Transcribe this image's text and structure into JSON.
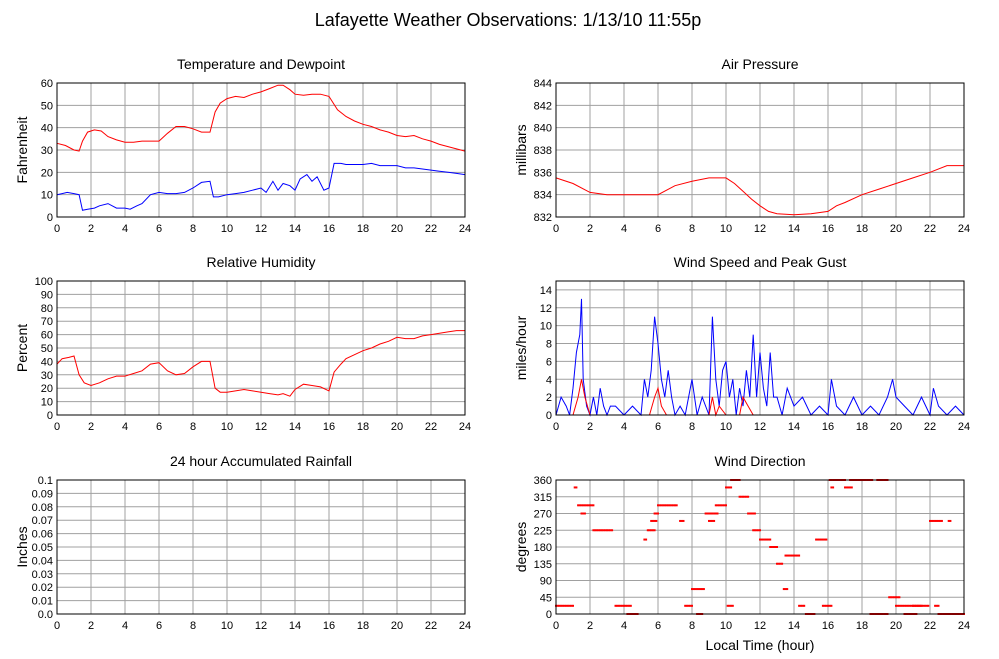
{
  "page": {
    "title": "Lafayette Weather Observations: 1/13/10 11:55p",
    "x_axis_label": "Local Time (hour)"
  },
  "colors": {
    "red": "#ff0000",
    "blue": "#0000ff",
    "grid": "#a0a0a0"
  },
  "chart_data": [
    {
      "id": "temp",
      "type": "line",
      "title": "Temperature and Dewpoint",
      "xlabel": "",
      "ylabel": "Fahrenheit",
      "xlim": [
        0,
        24
      ],
      "ylim": [
        0,
        60
      ],
      "xticks": [
        0,
        2,
        4,
        6,
        8,
        10,
        12,
        14,
        16,
        18,
        20,
        22,
        24
      ],
      "yticks": [
        0,
        10,
        20,
        30,
        40,
        50,
        60
      ],
      "grid": true,
      "series": [
        {
          "color": "red",
          "x": [
            0,
            0.5,
            1,
            1.3,
            1.5,
            1.8,
            2.2,
            2.6,
            3,
            3.5,
            4,
            4.5,
            5,
            5.5,
            6,
            6.5,
            7,
            7.5,
            8,
            8.5,
            9,
            9.3,
            9.6,
            10,
            10.5,
            11,
            11.5,
            12,
            12.5,
            13,
            13.3,
            13.7,
            14,
            14.5,
            15,
            15.5,
            16,
            16.5,
            17,
            17.5,
            18,
            18.5,
            19,
            19.5,
            20,
            20.5,
            21,
            21.5,
            22,
            22.5,
            23,
            23.5,
            24
          ],
          "y": [
            33,
            32,
            30,
            29.5,
            34,
            38,
            39,
            38.5,
            36,
            34.5,
            33.5,
            33.5,
            34,
            34,
            34,
            37.5,
            40.5,
            40.5,
            39.5,
            38,
            38,
            47,
            51,
            53,
            54,
            53.5,
            55,
            56,
            57.5,
            59,
            59,
            57,
            55,
            54.5,
            55,
            55,
            54,
            48,
            45,
            43,
            41.5,
            40.5,
            39,
            38,
            36.5,
            36,
            36.5,
            35,
            34,
            32.5,
            31.5,
            30.5,
            29.5
          ]
        },
        {
          "color": "blue",
          "x": [
            0,
            0.3,
            0.6,
            1,
            1.3,
            1.5,
            1.8,
            2.2,
            2.5,
            3,
            3.5,
            4,
            4.3,
            4.7,
            5,
            5.5,
            6,
            6.5,
            7,
            7.5,
            8,
            8.5,
            9,
            9.2,
            9.5,
            10,
            10.5,
            11,
            11.5,
            12,
            12.3,
            12.7,
            13,
            13.3,
            13.7,
            14,
            14.3,
            14.7,
            15,
            15.3,
            15.7,
            16,
            16.3,
            16.7,
            17,
            17.5,
            18,
            18.5,
            19,
            19.5,
            20,
            20.5,
            21,
            21.5,
            22,
            22.5,
            23,
            23.5,
            24
          ],
          "y": [
            10,
            10.5,
            11,
            10.5,
            10,
            3,
            3.5,
            4,
            5,
            6,
            4,
            4,
            3.5,
            5,
            6,
            10,
            11,
            10.5,
            10.5,
            11,
            13,
            15.5,
            16,
            9,
            9,
            10,
            10.5,
            11,
            12,
            13,
            11,
            16,
            12,
            15,
            14,
            12,
            17,
            19,
            16,
            18,
            12,
            13,
            24,
            24,
            23.5,
            23.5,
            23.5,
            24,
            23,
            23,
            23,
            22,
            22,
            21.5,
            21,
            20.5,
            20,
            19.5,
            19
          ]
        }
      ]
    },
    {
      "id": "pressure",
      "type": "line",
      "title": "Air Pressure",
      "xlabel": "",
      "ylabel": "millibars",
      "xlim": [
        0,
        24
      ],
      "ylim": [
        832,
        844
      ],
      "xticks": [
        0,
        2,
        4,
        6,
        8,
        10,
        12,
        14,
        16,
        18,
        20,
        22,
        24
      ],
      "yticks": [
        832,
        834,
        836,
        838,
        840,
        842,
        844
      ],
      "grid": true,
      "series": [
        {
          "color": "red",
          "x": [
            0,
            1,
            2,
            3,
            4,
            5,
            6,
            7,
            8,
            9,
            10,
            10.5,
            11,
            11.5,
            12,
            12.5,
            13,
            14,
            15,
            16,
            16.5,
            17,
            18,
            19,
            20,
            21,
            22,
            23,
            24
          ],
          "y": [
            835.5,
            835,
            834.2,
            834,
            834,
            834,
            834,
            834.8,
            835.2,
            835.5,
            835.5,
            835,
            834.3,
            833.6,
            833,
            832.5,
            832.3,
            832.2,
            832.3,
            832.5,
            833,
            833.3,
            834,
            834.5,
            835,
            835.5,
            836,
            836.6,
            836.6
          ]
        }
      ]
    },
    {
      "id": "humidity",
      "type": "line",
      "title": "Relative Humidity",
      "xlabel": "",
      "ylabel": "Percent",
      "xlim": [
        0,
        24
      ],
      "ylim": [
        0,
        100
      ],
      "xticks": [
        0,
        2,
        4,
        6,
        8,
        10,
        12,
        14,
        16,
        18,
        20,
        22,
        24
      ],
      "yticks": [
        0,
        10,
        20,
        30,
        40,
        50,
        60,
        70,
        80,
        90,
        100
      ],
      "grid": true,
      "series": [
        {
          "color": "red",
          "x": [
            0,
            0.3,
            0.7,
            1,
            1.3,
            1.6,
            2,
            2.5,
            3,
            3.5,
            4,
            4.5,
            5,
            5.5,
            6,
            6.5,
            7,
            7.5,
            8,
            8.5,
            9,
            9.3,
            9.6,
            10,
            10.5,
            11,
            11.5,
            12,
            12.5,
            13,
            13.3,
            13.7,
            14,
            14.5,
            15,
            15.5,
            16,
            16.3,
            16.7,
            17,
            17.5,
            18,
            18.5,
            19,
            19.5,
            20,
            20.5,
            21,
            21.5,
            22,
            22.5,
            23,
            23.5,
            24
          ],
          "y": [
            38,
            42,
            43,
            44,
            30,
            24,
            22,
            24,
            27,
            29,
            29,
            31,
            33,
            38,
            39,
            33,
            30,
            31,
            36,
            40,
            40,
            20,
            17,
            17,
            18,
            19,
            18,
            17,
            16,
            15,
            16,
            14,
            19,
            23,
            22,
            21,
            18,
            32,
            38,
            42,
            45,
            48,
            50,
            53,
            55,
            58,
            57,
            57,
            59,
            60,
            61,
            62,
            63,
            63
          ]
        }
      ]
    },
    {
      "id": "wind",
      "type": "line",
      "title": "Wind Speed and Peak Gust",
      "xlabel": "",
      "ylabel": "miles/hour",
      "xlim": [
        0,
        24
      ],
      "ylim": [
        0,
        15
      ],
      "xticks": [
        0,
        2,
        4,
        6,
        8,
        10,
        12,
        14,
        16,
        18,
        20,
        22,
        24
      ],
      "yticks": [
        0,
        2,
        4,
        6,
        8,
        10,
        12,
        14
      ],
      "grid": true,
      "series": [
        {
          "color": "blue",
          "x": [
            0,
            0.3,
            0.6,
            0.8,
            1,
            1.2,
            1.4,
            1.5,
            1.6,
            1.8,
            2,
            2.2,
            2.4,
            2.6,
            2.8,
            3,
            3.2,
            3.5,
            4,
            4.5,
            5,
            5.2,
            5.4,
            5.6,
            5.8,
            6,
            6.2,
            6.4,
            6.6,
            6.8,
            7,
            7.3,
            7.6,
            8,
            8.3,
            8.6,
            9,
            9.2,
            9.4,
            9.6,
            9.8,
            10,
            10.2,
            10.4,
            10.6,
            10.8,
            11,
            11.2,
            11.4,
            11.6,
            11.8,
            12,
            12.2,
            12.4,
            12.6,
            12.8,
            13,
            13.3,
            13.6,
            14,
            14.5,
            15,
            15.5,
            16,
            16.2,
            16.5,
            17,
            17.5,
            18,
            18.5,
            19,
            19.5,
            19.8,
            20,
            20.5,
            21,
            21.5,
            22,
            22.2,
            22.5,
            23,
            23.5,
            24
          ],
          "y": [
            0,
            2,
            1,
            0,
            3,
            7,
            9,
            13,
            4,
            1,
            0,
            2,
            0,
            3,
            1,
            0,
            1,
            1,
            0,
            1,
            0,
            4,
            2,
            5,
            11,
            8,
            4,
            2,
            5,
            2,
            0,
            1,
            0,
            4,
            0,
            2,
            0,
            11,
            4,
            1,
            5,
            6,
            2,
            4,
            0,
            3,
            1,
            5,
            2,
            9,
            2,
            7,
            3,
            1,
            7,
            2,
            2,
            0,
            3,
            1,
            2,
            0,
            1,
            0,
            4,
            1,
            0,
            2,
            0,
            1,
            0,
            2,
            4,
            2,
            1,
            0,
            2,
            0,
            3,
            1,
            0,
            1,
            0
          ]
        },
        {
          "color": "red",
          "x": [
            0,
            1,
            1.3,
            1.5,
            1.7,
            2,
            5.5,
            5.8,
            6,
            6.2,
            6.5,
            9,
            9.2,
            9.4,
            9.6,
            10,
            10.8,
            11,
            11.3,
            11.6,
            20,
            24
          ],
          "y": [
            0,
            0,
            2,
            4,
            2,
            0,
            0,
            2,
            3,
            1,
            0,
            0,
            2,
            0,
            1,
            0,
            0,
            2,
            1,
            0,
            0,
            0
          ]
        }
      ]
    },
    {
      "id": "rain",
      "type": "line",
      "title": "24 hour Accumulated Rainfall",
      "xlabel": "",
      "ylabel": "Inches",
      "xlim": [
        0,
        24
      ],
      "ylim": [
        0,
        0.1
      ],
      "xticks": [
        0,
        2,
        4,
        6,
        8,
        10,
        12,
        14,
        16,
        18,
        20,
        22,
        24
      ],
      "yticks": [
        0.0,
        0.01,
        0.02,
        0.03,
        0.04,
        0.05,
        0.06,
        0.07,
        0.08,
        0.09,
        0.1
      ],
      "ytick_labels": [
        "0.0",
        "0.01",
        "0.02",
        "0.03",
        "0.04",
        "0.05",
        "0.06",
        "0.07",
        "0.08",
        "0.09",
        "0.1"
      ],
      "grid": true,
      "series": [
        {
          "color": "red",
          "x": [
            0,
            24
          ],
          "y": [
            0,
            0
          ]
        }
      ]
    },
    {
      "id": "direction",
      "type": "scatter",
      "title": "Wind Direction",
      "xlabel": "Local Time (hour)",
      "ylabel": "degrees",
      "xlim": [
        0,
        24
      ],
      "ylim": [
        0,
        360
      ],
      "xticks": [
        0,
        2,
        4,
        6,
        8,
        10,
        12,
        14,
        16,
        18,
        20,
        22,
        24
      ],
      "yticks": [
        0,
        45,
        90,
        135,
        180,
        225,
        270,
        315,
        360
      ],
      "grid": true,
      "series": [
        {
          "color": "red",
          "runs": [
            [
              0.0,
              1.0,
              22
            ],
            [
              1.1,
              1.2,
              340
            ],
            [
              1.3,
              2.2,
              292
            ],
            [
              1.5,
              1.7,
              270
            ],
            [
              2.2,
              3.3,
              225
            ],
            [
              3.5,
              4.4,
              22
            ],
            [
              4.2,
              4.8,
              0
            ],
            [
              5.2,
              5.3,
              200
            ],
            [
              5.4,
              5.8,
              225
            ],
            [
              5.6,
              5.9,
              250
            ],
            [
              5.8,
              6.0,
              270
            ],
            [
              6.0,
              7.1,
              292
            ],
            [
              7.3,
              7.5,
              250
            ],
            [
              7.6,
              8.0,
              22
            ],
            [
              8.0,
              8.7,
              67
            ],
            [
              8.3,
              8.6,
              0
            ],
            [
              8.8,
              9.5,
              270
            ],
            [
              9.0,
              9.3,
              250
            ],
            [
              9.4,
              10.0,
              292
            ],
            [
              10.0,
              10.3,
              340
            ],
            [
              10.3,
              10.8,
              360
            ],
            [
              10.1,
              10.4,
              22
            ],
            [
              10.8,
              11.3,
              315
            ],
            [
              11.3,
              11.7,
              270
            ],
            [
              11.6,
              12.0,
              225
            ],
            [
              12.0,
              12.6,
              200
            ],
            [
              12.6,
              13.0,
              180
            ],
            [
              13.0,
              13.3,
              135
            ],
            [
              13.4,
              13.6,
              67
            ],
            [
              13.5,
              14.3,
              157
            ],
            [
              14.3,
              14.6,
              22
            ],
            [
              14.7,
              15.2,
              0
            ],
            [
              15.3,
              15.9,
              200
            ],
            [
              15.7,
              16.2,
              22
            ],
            [
              16.1,
              17.0,
              360
            ],
            [
              16.2,
              16.3,
              340
            ],
            [
              17.0,
              17.4,
              340
            ],
            [
              17.3,
              18.6,
              360
            ],
            [
              18.5,
              18.9,
              0
            ],
            [
              18.9,
              19.5,
              360
            ],
            [
              19.0,
              19.5,
              0
            ],
            [
              19.6,
              20.2,
              45
            ],
            [
              20.0,
              21.9,
              22
            ],
            [
              20.5,
              21.2,
              0
            ],
            [
              21.0,
              21.5,
              22
            ],
            [
              22.0,
              22.7,
              250
            ],
            [
              22.3,
              22.5,
              22
            ],
            [
              22.5,
              24.0,
              0
            ],
            [
              23.1,
              23.2,
              250
            ]
          ]
        }
      ]
    }
  ]
}
